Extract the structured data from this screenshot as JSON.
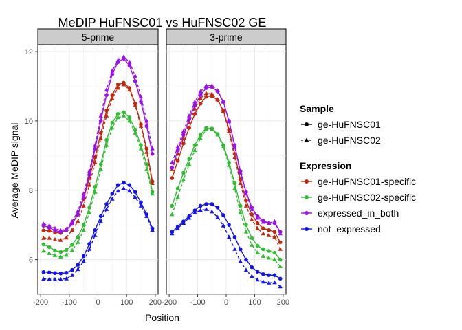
{
  "chart_data": {
    "type": "line",
    "title": "MeDIP HuFNSC01 vs HuFNSC02 GE",
    "xlabel": "Position",
    "ylabel": "Average MeDIP signal",
    "ylim": [
      5.0,
      12.2
    ],
    "yticks": [
      6,
      8,
      10,
      12
    ],
    "xticks": [
      -200,
      -100,
      0,
      100,
      200
    ],
    "grid": true,
    "legend_position": "right",
    "panels": [
      {
        "label": "5-prime",
        "xlim": [
          -210,
          210
        ]
      },
      {
        "label": "3-prime",
        "xlim": [
          -210,
          210
        ]
      }
    ],
    "legend": {
      "sample_title": "Sample",
      "samples": [
        {
          "label": "ge-HuFNSC01",
          "marker": "circle",
          "line": "solid"
        },
        {
          "label": "ge-HuFNSC02",
          "marker": "triangle",
          "line": "dashed"
        }
      ],
      "expression_title": "Expression",
      "expressions": [
        {
          "label": "ge-HuFNSC01-specific",
          "color": "#C0280E"
        },
        {
          "label": "ge-HuFNSC02-specific",
          "color": "#33BB33"
        },
        {
          "label": "expressed_in_both",
          "color": "#9B10E8"
        },
        {
          "label": "not_expressed",
          "color": "#1414E6"
        }
      ]
    },
    "x": [
      -190,
      -170,
      -150,
      -130,
      -110,
      -90,
      -70,
      -50,
      -30,
      -10,
      10,
      30,
      50,
      70,
      90,
      110,
      130,
      150,
      170,
      190
    ],
    "series": [
      {
        "panel": 0,
        "expression": 0,
        "sample": 0,
        "values": [
          6.84,
          6.83,
          6.78,
          6.77,
          6.85,
          7.05,
          7.3,
          7.75,
          8.35,
          8.95,
          9.65,
          10.3,
          10.75,
          11.05,
          11.1,
          10.95,
          10.5,
          9.9,
          9.2,
          8.25
        ]
      },
      {
        "panel": 0,
        "expression": 0,
        "sample": 1,
        "values": [
          6.62,
          6.62,
          6.58,
          6.56,
          6.63,
          6.85,
          7.1,
          7.55,
          8.15,
          8.8,
          9.5,
          10.15,
          10.65,
          10.95,
          11.05,
          10.9,
          10.45,
          9.85,
          9.1,
          8.2
        ]
      },
      {
        "panel": 0,
        "expression": 1,
        "sample": 0,
        "values": [
          6.44,
          6.36,
          6.26,
          6.22,
          6.28,
          6.43,
          6.65,
          7.0,
          7.5,
          8.1,
          8.75,
          9.45,
          9.95,
          10.2,
          10.25,
          10.1,
          9.75,
          9.3,
          8.75,
          7.95
        ]
      },
      {
        "panel": 0,
        "expression": 1,
        "sample": 1,
        "values": [
          6.25,
          6.18,
          6.12,
          6.08,
          6.13,
          6.27,
          6.5,
          6.85,
          7.35,
          7.95,
          8.6,
          9.3,
          9.8,
          10.1,
          10.15,
          10.0,
          9.65,
          9.2,
          8.6,
          7.9
        ]
      },
      {
        "panel": 0,
        "expression": 2,
        "sample": 0,
        "values": [
          6.98,
          6.92,
          6.84,
          6.8,
          6.85,
          7.03,
          7.3,
          7.8,
          8.45,
          9.2,
          10.0,
          10.75,
          11.35,
          11.7,
          11.8,
          11.6,
          11.15,
          10.55,
          9.85,
          9.05
        ]
      },
      {
        "panel": 0,
        "expression": 2,
        "sample": 1,
        "values": [
          7.03,
          6.98,
          6.9,
          6.84,
          6.88,
          7.1,
          7.4,
          7.9,
          8.55,
          9.3,
          10.15,
          10.9,
          11.45,
          11.75,
          11.85,
          11.7,
          11.3,
          10.7,
          10.0,
          9.2
        ]
      },
      {
        "panel": 0,
        "expression": 3,
        "sample": 0,
        "values": [
          5.64,
          5.63,
          5.61,
          5.6,
          5.62,
          5.7,
          5.85,
          6.1,
          6.45,
          6.85,
          7.25,
          7.6,
          7.9,
          8.15,
          8.22,
          8.15,
          7.95,
          7.65,
          7.3,
          6.9
        ]
      },
      {
        "panel": 0,
        "expression": 3,
        "sample": 1,
        "values": [
          5.44,
          5.44,
          5.43,
          5.43,
          5.45,
          5.55,
          5.72,
          5.95,
          6.3,
          6.7,
          7.1,
          7.45,
          7.75,
          7.98,
          8.05,
          7.98,
          7.8,
          7.55,
          7.25,
          6.85
        ]
      },
      {
        "panel": 1,
        "expression": 0,
        "sample": 0,
        "values": [
          8.35,
          8.85,
          9.35,
          9.8,
          10.2,
          10.5,
          10.7,
          10.72,
          10.6,
          10.3,
          9.75,
          9.05,
          8.3,
          7.7,
          7.3,
          7.05,
          6.9,
          6.85,
          6.8,
          6.5
        ]
      },
      {
        "panel": 1,
        "expression": 0,
        "sample": 1,
        "values": [
          8.6,
          9.05,
          9.5,
          9.95,
          10.35,
          10.65,
          10.8,
          10.78,
          10.62,
          10.28,
          9.7,
          8.95,
          8.2,
          7.55,
          7.15,
          6.9,
          6.75,
          6.7,
          6.65,
          6.3
        ]
      },
      {
        "panel": 1,
        "expression": 1,
        "sample": 0,
        "values": [
          7.55,
          8.05,
          8.5,
          8.9,
          9.3,
          9.6,
          9.8,
          9.78,
          9.62,
          9.3,
          8.8,
          8.2,
          7.55,
          7.0,
          6.62,
          6.4,
          6.3,
          6.25,
          6.2,
          6.0
        ]
      },
      {
        "panel": 1,
        "expression": 1,
        "sample": 1,
        "values": [
          7.3,
          7.8,
          8.3,
          8.75,
          9.15,
          9.5,
          9.75,
          9.75,
          9.6,
          9.25,
          8.72,
          8.05,
          7.35,
          6.8,
          6.42,
          6.2,
          6.1,
          6.05,
          6.0,
          5.8
        ]
      },
      {
        "panel": 1,
        "expression": 2,
        "sample": 0,
        "values": [
          8.65,
          9.15,
          9.6,
          10.05,
          10.45,
          10.75,
          10.95,
          10.98,
          10.85,
          10.55,
          10.0,
          9.3,
          8.55,
          7.95,
          7.5,
          7.25,
          7.12,
          7.05,
          7.05,
          6.8
        ]
      },
      {
        "panel": 1,
        "expression": 2,
        "sample": 1,
        "values": [
          8.8,
          9.25,
          9.7,
          10.15,
          10.55,
          10.85,
          11.02,
          11.02,
          10.88,
          10.55,
          9.98,
          9.25,
          8.5,
          7.9,
          7.45,
          7.2,
          7.08,
          7.05,
          7.1,
          6.75
        ]
      },
      {
        "panel": 1,
        "expression": 3,
        "sample": 0,
        "values": [
          6.8,
          6.95,
          7.1,
          7.25,
          7.42,
          7.55,
          7.6,
          7.6,
          7.5,
          7.28,
          7.0,
          6.65,
          6.3,
          6.0,
          5.78,
          5.65,
          5.58,
          5.55,
          5.55,
          5.45
        ]
      },
      {
        "panel": 1,
        "expression": 3,
        "sample": 1,
        "values": [
          6.75,
          6.9,
          7.05,
          7.2,
          7.35,
          7.42,
          7.45,
          7.38,
          7.22,
          6.98,
          6.65,
          6.3,
          5.95,
          5.7,
          5.52,
          5.42,
          5.36,
          5.33,
          5.34,
          5.22
        ]
      }
    ]
  }
}
